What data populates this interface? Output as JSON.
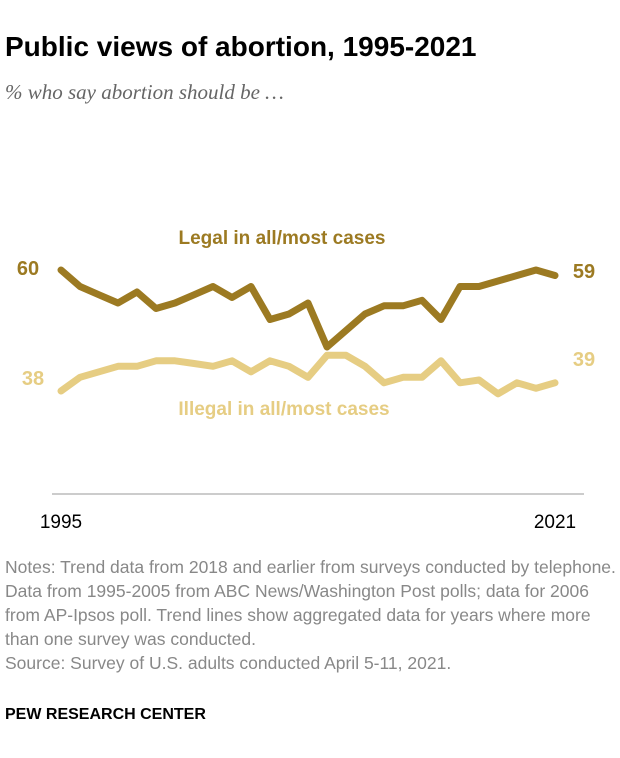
{
  "header": {
    "title": "Public views of abortion, 1995-2021",
    "subtitle": "% who say abortion should be …"
  },
  "footer": {
    "notes": "Notes: Trend data from 2018 and earlier from surveys conducted by telephone. Data from 1995-2005 from ABC News/Washington Post polls; data for 2006 from AP-Ipsos poll. Trend lines show aggregated data for years where more than one survey was conducted.",
    "source": "Source: Survey of U.S. adults conducted April 5-11, 2021.",
    "brand": "PEW RESEARCH CENTER"
  },
  "colors": {
    "legal": "#9c7a22",
    "illegal": "#e6cd83",
    "axis": "#999999"
  },
  "chart_data": {
    "type": "line",
    "x": [
      1995,
      1996,
      1997,
      1998,
      1999,
      2000,
      2001,
      2002,
      2003,
      2004,
      2005,
      2006,
      2007,
      2008,
      2009,
      2010,
      2011,
      2012,
      2013,
      2014,
      2015,
      2016,
      2017,
      2018,
      2019,
      2020,
      2021
    ],
    "x_tick_labels": [
      "1995",
      "2021"
    ],
    "x_tick_values": [
      1995,
      2021
    ],
    "ylim": [
      25,
      75
    ],
    "grid": false,
    "series": [
      {
        "name": "Legal in all/most cases",
        "key": "legal",
        "values": [
          60,
          57,
          55.5,
          54,
          56,
          53,
          54,
          55.5,
          57,
          55,
          57,
          51,
          52,
          54,
          46,
          49,
          52,
          53.5,
          53.5,
          54.5,
          51,
          57,
          57,
          58,
          59,
          60,
          59
        ],
        "start_label": "60",
        "end_label": "59"
      },
      {
        "name": "Illegal in all/most cases",
        "key": "illegal",
        "values": [
          38,
          40.5,
          41.5,
          42.5,
          42.5,
          43.5,
          43.5,
          43,
          42.5,
          43.5,
          41.5,
          43.5,
          42.5,
          40.5,
          44.5,
          44.5,
          42.5,
          39.5,
          40.5,
          40.5,
          43.5,
          39.5,
          40,
          37.5,
          39.5,
          38.5,
          39.5
        ],
        "start_label": "38",
        "end_label": "39"
      }
    ]
  }
}
